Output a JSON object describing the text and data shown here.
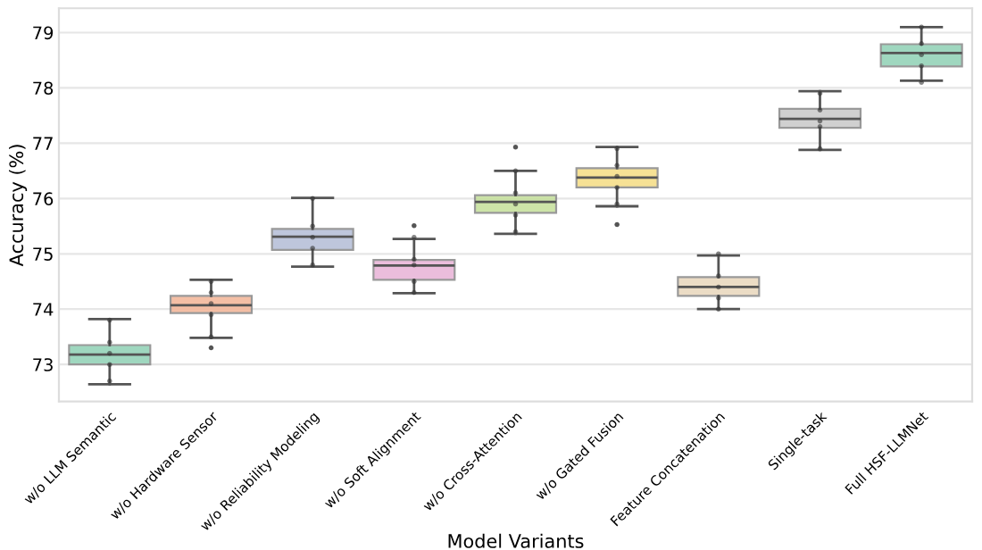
{
  "chart_data": {
    "type": "box",
    "xlabel": "Model Variants",
    "ylabel": "Accuracy (%)",
    "categories": [
      "w/o LLM Semantic",
      "w/o Hardware Sensor",
      "w/o Reliability Modeling",
      "w/o Soft Alignment",
      "w/o Cross-Attention",
      "w/o Gated Fusion",
      "Feature Concatenation",
      "Single-task",
      "Full HSF-LLMNet"
    ],
    "colors": [
      "#8fd1b5",
      "#f3b496",
      "#b3bdd6",
      "#e8b2d6",
      "#c5e09a",
      "#f5dc83",
      "#e8d6bc",
      "#c8c8c8",
      "#8fd1b5"
    ],
    "boxes": [
      {
        "low": 72.64,
        "q1": 73.0,
        "median": 73.18,
        "q3": 73.35,
        "high": 73.82
      },
      {
        "low": 73.48,
        "q1": 73.93,
        "median": 74.07,
        "q3": 74.24,
        "high": 74.53,
        "outliers": [
          73.3
        ]
      },
      {
        "low": 74.77,
        "q1": 75.07,
        "median": 75.31,
        "q3": 75.45,
        "high": 76.01
      },
      {
        "low": 74.29,
        "q1": 74.53,
        "median": 74.79,
        "q3": 74.89,
        "high": 75.27,
        "outliers": [
          75.51
        ]
      },
      {
        "low": 75.36,
        "q1": 75.74,
        "median": 75.94,
        "q3": 76.06,
        "high": 76.5,
        "outliers": [
          76.93
        ]
      },
      {
        "low": 75.86,
        "q1": 76.2,
        "median": 76.38,
        "q3": 76.55,
        "high": 76.93,
        "outliers": [
          75.53
        ]
      },
      {
        "low": 74.0,
        "q1": 74.24,
        "median": 74.4,
        "q3": 74.58,
        "high": 74.97
      },
      {
        "low": 76.88,
        "q1": 77.28,
        "median": 77.44,
        "q3": 77.62,
        "high": 77.94
      },
      {
        "low": 78.13,
        "q1": 78.39,
        "median": 78.63,
        "q3": 78.79,
        "high": 79.1
      }
    ],
    "series": [
      {
        "type": "scatter",
        "color": "#333333",
        "x": [
          "w/o LLM Semantic",
          "w/o LLM Semantic",
          "w/o LLM Semantic",
          "w/o LLM Semantic",
          "w/o LLM Semantic",
          "w/o Hardware Sensor",
          "w/o Hardware Sensor",
          "w/o Hardware Sensor",
          "w/o Hardware Sensor",
          "w/o Hardware Sensor",
          "w/o Reliability Modeling",
          "w/o Reliability Modeling",
          "w/o Reliability Modeling",
          "w/o Reliability Modeling",
          "w/o Reliability Modeling",
          "w/o Soft Alignment",
          "w/o Soft Alignment",
          "w/o Soft Alignment",
          "w/o Soft Alignment",
          "w/o Soft Alignment",
          "w/o Cross-Attention",
          "w/o Cross-Attention",
          "w/o Cross-Attention",
          "w/o Cross-Attention",
          "w/o Cross-Attention",
          "w/o Gated Fusion",
          "w/o Gated Fusion",
          "w/o Gated Fusion",
          "w/o Gated Fusion",
          "w/o Gated Fusion",
          "Feature Concatenation",
          "Feature Concatenation",
          "Feature Concatenation",
          "Feature Concatenation",
          "Feature Concatenation",
          "Single-task",
          "Single-task",
          "Single-task",
          "Single-task",
          "Single-task",
          "Full HSF-LLMNet",
          "Full HSF-LLMNet",
          "Full HSF-LLMNet",
          "Full HSF-LLMNet",
          "Full HSF-LLMNet"
        ],
        "values": [
          72.7,
          73.0,
          73.2,
          73.4,
          73.8,
          73.5,
          73.9,
          74.1,
          74.3,
          74.5,
          74.8,
          75.1,
          75.3,
          75.5,
          76.0,
          74.3,
          74.5,
          74.8,
          74.9,
          75.3,
          75.4,
          75.7,
          75.9,
          76.1,
          76.5,
          75.9,
          76.2,
          76.4,
          76.6,
          76.9,
          74.0,
          74.2,
          74.4,
          74.6,
          75.0,
          76.9,
          77.3,
          77.4,
          77.6,
          77.9,
          78.1,
          78.4,
          78.6,
          78.8,
          79.1
        ]
      }
    ],
    "ylim": [
      72.33,
      79.44
    ],
    "yticks": [
      73,
      74,
      75,
      76,
      77,
      78,
      79
    ],
    "grid": "y"
  }
}
